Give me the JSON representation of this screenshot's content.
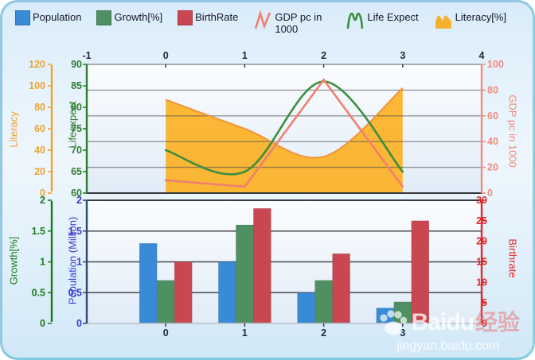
{
  "legend": {
    "items": [
      {
        "label": "Population",
        "swatch": "square",
        "color": "#398BD8"
      },
      {
        "label": "Growth[%]",
        "swatch": "square",
        "color": "#4F9062"
      },
      {
        "label": "BirthRate",
        "swatch": "square",
        "color": "#C94750"
      },
      {
        "label": "GDP pc in 1000",
        "swatch": "zigzag",
        "color": "#F0806E"
      },
      {
        "label": "Life Expect",
        "swatch": "curve",
        "color": "#3E8E41"
      },
      {
        "label": "Literacy[%]",
        "swatch": "mountain",
        "color": "#F5B02E"
      }
    ]
  },
  "axes": {
    "top_x": {
      "position": "top",
      "ticks": [
        -1,
        0,
        1,
        2,
        3,
        4
      ],
      "min": -1,
      "max": 4,
      "color": "#1B2A41"
    },
    "literacy": {
      "title": "Literacy",
      "color": "#F0A233",
      "ticks": [
        120,
        100,
        80,
        60,
        40,
        20,
        0
      ],
      "min": 0,
      "max": 120
    },
    "lifeexpect": {
      "title": "Lifeexpect",
      "color": "#2E7D2E",
      "ticks": [
        90,
        85,
        80,
        75,
        70,
        65,
        60
      ],
      "min": 60,
      "max": 90
    },
    "gdp": {
      "title": "GDP pc in 1000",
      "color": "#F28C7C",
      "ticks": [
        100,
        80,
        60,
        40,
        20,
        0
      ],
      "min": 0,
      "max": 100
    },
    "growth": {
      "title": "Growth[%]",
      "color": "#1F7A1F",
      "ticks": [
        2,
        1.5,
        1,
        0.5,
        0
      ],
      "min": 0,
      "max": 2
    },
    "population": {
      "title": "Population (Million)",
      "color": "#3A3ACF",
      "ticks": [
        2,
        1.5,
        1,
        0.5,
        0
      ],
      "min": 0,
      "max": 2
    },
    "birthrate": {
      "title": "Birthrate",
      "color": "#E32A2A",
      "ticks": [
        30,
        25,
        20,
        15,
        10,
        5,
        0
      ],
      "min": 0,
      "max": 30
    },
    "bottom_x": {
      "position": "bottom",
      "ticks": [
        0,
        1,
        2,
        3
      ],
      "color": "#1B2A41"
    }
  },
  "chart_data": [
    {
      "type": "area",
      "x": [
        0,
        1,
        2,
        3
      ],
      "x_range": [
        -1,
        4
      ],
      "x_axis_position": "top",
      "grid": true,
      "gridlines": {
        "axis": "gdp",
        "at": [
          20,
          40,
          60,
          80
        ]
      },
      "series": [
        {
          "name": "Literacy[%]",
          "type": "smooth-area",
          "axis": "literacy",
          "color": "#FBB32A",
          "line_color": "#F0953C",
          "values": [
            87,
            60,
            34,
            98
          ]
        },
        {
          "name": "Life Expect",
          "type": "smooth-line",
          "axis": "lifeexpect",
          "color": "#3E8E41",
          "values": [
            70,
            65,
            86,
            65
          ]
        },
        {
          "name": "GDP pc in 1000",
          "type": "line",
          "axis": "gdp",
          "color": "#F0806E",
          "values": [
            10,
            5,
            88,
            5
          ]
        }
      ],
      "legend_position": "top"
    },
    {
      "type": "bar",
      "categories": [
        0,
        1,
        2,
        3
      ],
      "x_axis_position": "bottom",
      "grid": true,
      "gridlines": {
        "axis": "population",
        "at": [
          0.5,
          1.0,
          1.5
        ]
      },
      "series": [
        {
          "name": "Population",
          "axis": "population",
          "color": "#398BD8",
          "values": [
            1.3,
            1.0,
            0.5,
            0.25
          ]
        },
        {
          "name": "Growth[%]",
          "axis": "growth",
          "color": "#4F9062",
          "values": [
            0.7,
            1.6,
            0.7,
            0.35
          ]
        },
        {
          "name": "BirthRate",
          "axis": "birthrate",
          "color": "#C94750",
          "values": [
            15,
            28,
            17,
            25
          ]
        }
      ]
    }
  ],
  "watermark": {
    "brand": "Baidu",
    "brand_cn": "经验",
    "url": "jingyan.baidu.com"
  }
}
